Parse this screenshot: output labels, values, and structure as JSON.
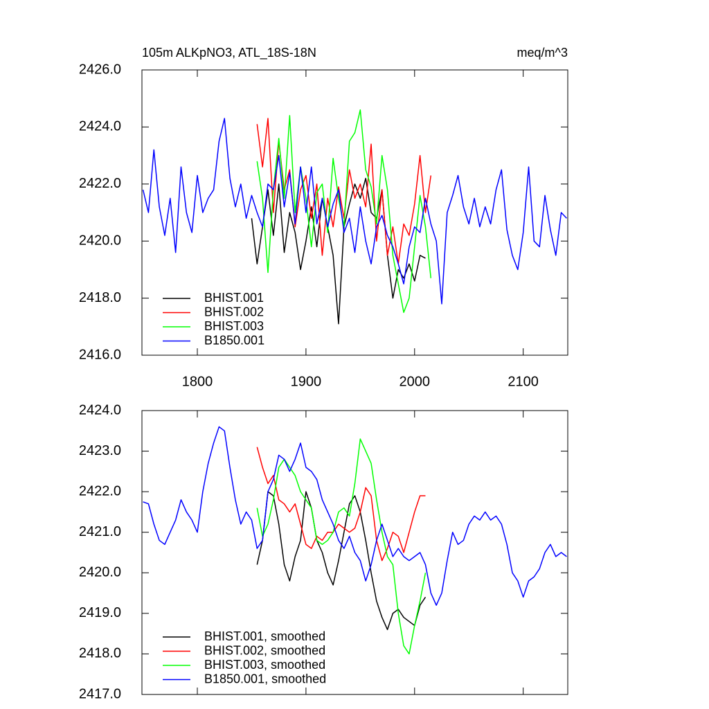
{
  "chart_data": [
    {
      "type": "line",
      "title": "105m ALKpNO3, ATL_18S-18N",
      "units": "meq/m^3",
      "xlim": [
        1749,
        2141
      ],
      "xticks": [
        1800,
        1900,
        2000,
        2100
      ],
      "ylim": [
        2416,
        2426
      ],
      "yticks": [
        {
          "value": 2416,
          "label": "2416.0"
        },
        {
          "value": 2418,
          "label": "2418.0"
        },
        {
          "value": 2420,
          "label": "2420.0"
        },
        {
          "value": 2422,
          "label": "2422.0"
        },
        {
          "value": 2424,
          "label": "2424.0"
        },
        {
          "value": 2426,
          "label": "2426.0"
        }
      ],
      "series": [
        {
          "name": "BHIST.001",
          "color": "#000000",
          "x": [
            1850,
            1855,
            1860,
            1865,
            1870,
            1875,
            1880,
            1885,
            1890,
            1895,
            1900,
            1905,
            1910,
            1915,
            1920,
            1925,
            1930,
            1935,
            1940,
            1945,
            1950,
            1955,
            1960,
            1965,
            1970,
            1975,
            1980,
            1985,
            1990,
            1995,
            2000,
            2005,
            2010
          ],
          "values": [
            2420.8,
            2419.2,
            2420.5,
            2421.8,
            2420.2,
            2422.0,
            2419.6,
            2421.0,
            2420.3,
            2419.0,
            2420.0,
            2421.2,
            2419.8,
            2421.5,
            2420.5,
            2419.5,
            2417.1,
            2420.5,
            2421.3,
            2422.0,
            2421.5,
            2422.2,
            2421.0,
            2420.8,
            2421.8,
            2419.5,
            2418.0,
            2419.0,
            2418.7,
            2419.2,
            2418.6,
            2419.5,
            2419.4
          ]
        },
        {
          "name": "BHIST.002",
          "color": "#ff0000",
          "x": [
            1855,
            1860,
            1865,
            1870,
            1875,
            1880,
            1885,
            1890,
            1895,
            1900,
            1905,
            1910,
            1915,
            1920,
            1925,
            1930,
            1935,
            1940,
            1945,
            1950,
            1955,
            1960,
            1965,
            1970,
            1975,
            1980,
            1985,
            1990,
            1995,
            2000,
            2005,
            2010,
            2015
          ],
          "values": [
            2424.1,
            2422.6,
            2424.3,
            2421.0,
            2423.5,
            2421.8,
            2422.5,
            2420.5,
            2421.8,
            2422.3,
            2420.8,
            2422.0,
            2419.5,
            2421.5,
            2420.5,
            2421.9,
            2420.8,
            2422.5,
            2421.5,
            2422.0,
            2421.2,
            2423.4,
            2420.0,
            2421.8,
            2419.5,
            2420.5,
            2419.2,
            2420.6,
            2420.2,
            2421.3,
            2423.0,
            2421.0,
            2422.3
          ]
        },
        {
          "name": "BHIST.003",
          "color": "#00ff00",
          "x": [
            1855,
            1860,
            1865,
            1870,
            1875,
            1880,
            1885,
            1890,
            1895,
            1900,
            1905,
            1910,
            1915,
            1920,
            1925,
            1930,
            1935,
            1940,
            1945,
            1950,
            1955,
            1960,
            1965,
            1970,
            1975,
            1980,
            1985,
            1990,
            1995,
            2000,
            2005,
            2010,
            2015
          ],
          "values": [
            2422.8,
            2421.5,
            2418.9,
            2421.8,
            2423.6,
            2421.5,
            2424.4,
            2421.0,
            2422.6,
            2421.5,
            2419.8,
            2421.7,
            2422.0,
            2420.3,
            2422.9,
            2421.5,
            2420.5,
            2423.5,
            2423.8,
            2424.6,
            2422.5,
            2421.9,
            2420.6,
            2423.0,
            2421.8,
            2419.5,
            2418.5,
            2417.5,
            2418.0,
            2419.8,
            2421.6,
            2420.5,
            2418.7
          ]
        },
        {
          "name": "B1850.001",
          "color": "#0000ff",
          "x": [
            1750,
            1755,
            1760,
            1765,
            1770,
            1775,
            1780,
            1785,
            1790,
            1795,
            1800,
            1805,
            1810,
            1815,
            1820,
            1825,
            1830,
            1835,
            1840,
            1845,
            1850,
            1855,
            1860,
            1865,
            1870,
            1875,
            1880,
            1885,
            1890,
            1895,
            1900,
            1905,
            1910,
            1915,
            1920,
            1925,
            1930,
            1935,
            1940,
            1945,
            1950,
            1955,
            1960,
            1965,
            1970,
            1975,
            1980,
            1985,
            1990,
            1995,
            2000,
            2005,
            2010,
            2015,
            2020,
            2025,
            2030,
            2035,
            2040,
            2045,
            2050,
            2055,
            2060,
            2065,
            2070,
            2075,
            2080,
            2085,
            2090,
            2095,
            2100,
            2105,
            2110,
            2115,
            2120,
            2125,
            2130,
            2135,
            2140
          ],
          "values": [
            2421.8,
            2421.0,
            2423.2,
            2421.2,
            2420.2,
            2421.5,
            2419.6,
            2422.6,
            2421.0,
            2420.3,
            2422.3,
            2421.0,
            2421.5,
            2421.8,
            2423.5,
            2424.3,
            2422.2,
            2421.2,
            2422.0,
            2420.8,
            2421.6,
            2421.0,
            2420.5,
            2422.0,
            2421.8,
            2423.0,
            2421.2,
            2422.4,
            2420.6,
            2422.6,
            2421.0,
            2422.6,
            2420.6,
            2421.5,
            2420.5,
            2421.3,
            2421.8,
            2420.3,
            2420.8,
            2419.6,
            2421.2,
            2420.0,
            2419.2,
            2420.5,
            2420.9,
            2420.2,
            2419.8,
            2419.2,
            2418.5,
            2419.8,
            2420.5,
            2420.3,
            2421.5,
            2420.6,
            2420.0,
            2417.8,
            2421.0,
            2421.6,
            2422.3,
            2421.2,
            2420.6,
            2421.5,
            2420.5,
            2421.2,
            2420.6,
            2421.8,
            2422.5,
            2420.4,
            2419.5,
            2419.0,
            2420.3,
            2422.6,
            2420.0,
            2419.8,
            2421.6,
            2420.4,
            2419.5,
            2421.0,
            2420.8
          ]
        }
      ]
    },
    {
      "type": "line",
      "xlim": [
        1749,
        2141
      ],
      "xticks": [
        1800,
        1900,
        2000,
        2100
      ],
      "ylim": [
        2417,
        2424
      ],
      "yticks": [
        {
          "value": 2417,
          "label": "2417.0"
        },
        {
          "value": 2418,
          "label": "2418.0"
        },
        {
          "value": 2419,
          "label": "2419.0"
        },
        {
          "value": 2420,
          "label": "2420.0"
        },
        {
          "value": 2421,
          "label": "2421.0"
        },
        {
          "value": 2422,
          "label": "2422.0"
        },
        {
          "value": 2423,
          "label": "2423.0"
        },
        {
          "value": 2424,
          "label": "2424.0"
        }
      ],
      "series": [
        {
          "name": "BHIST.001, smoothed",
          "color": "#000000",
          "x": [
            1855,
            1860,
            1865,
            1870,
            1875,
            1880,
            1885,
            1890,
            1895,
            1900,
            1905,
            1910,
            1915,
            1920,
            1925,
            1930,
            1935,
            1940,
            1945,
            1950,
            1955,
            1960,
            1965,
            1970,
            1975,
            1980,
            1985,
            1990,
            1995,
            2000,
            2005,
            2010
          ],
          "values": [
            2420.2,
            2420.8,
            2422.0,
            2421.9,
            2421.2,
            2420.2,
            2419.8,
            2420.4,
            2420.8,
            2422.0,
            2421.6,
            2420.8,
            2420.5,
            2420.0,
            2419.7,
            2420.3,
            2421.0,
            2421.7,
            2421.9,
            2421.5,
            2420.8,
            2420.0,
            2419.3,
            2418.9,
            2418.6,
            2419.0,
            2419.1,
            2418.9,
            2418.8,
            2418.7,
            2419.2,
            2419.4
          ]
        },
        {
          "name": "BHIST.002, smoothed",
          "color": "#ff0000",
          "x": [
            1855,
            1860,
            1865,
            1870,
            1875,
            1880,
            1885,
            1890,
            1895,
            1900,
            1905,
            1910,
            1915,
            1920,
            1925,
            1930,
            1935,
            1940,
            1945,
            1950,
            1955,
            1960,
            1965,
            1970,
            1975,
            1980,
            1985,
            1990,
            1995,
            2000,
            2005,
            2010
          ],
          "values": [
            2423.1,
            2422.6,
            2422.2,
            2422.4,
            2421.8,
            2421.7,
            2421.5,
            2421.7,
            2421.2,
            2420.7,
            2420.6,
            2420.9,
            2420.8,
            2421.0,
            2421.0,
            2421.2,
            2421.1,
            2421.0,
            2421.1,
            2421.5,
            2422.1,
            2421.9,
            2420.8,
            2420.3,
            2420.6,
            2421.0,
            2420.9,
            2420.5,
            2421.0,
            2421.5,
            2421.9,
            2421.9
          ]
        },
        {
          "name": "BHIST.003, smoothed",
          "color": "#00ff00",
          "x": [
            1855,
            1860,
            1865,
            1870,
            1875,
            1880,
            1885,
            1890,
            1895,
            1900,
            1905,
            1910,
            1915,
            1920,
            1925,
            1930,
            1935,
            1940,
            1945,
            1950,
            1955,
            1960,
            1965,
            1970,
            1975,
            1980,
            1985,
            1990,
            1995,
            2000,
            2005,
            2010
          ],
          "values": [
            2421.6,
            2420.9,
            2421.2,
            2421.8,
            2422.6,
            2422.8,
            2422.6,
            2422.4,
            2422.0,
            2421.8,
            2421.6,
            2420.8,
            2420.7,
            2420.8,
            2421.0,
            2421.5,
            2421.6,
            2421.4,
            2422.2,
            2423.3,
            2423.0,
            2422.7,
            2421.8,
            2421.0,
            2420.4,
            2420.2,
            2419.0,
            2418.2,
            2418.0,
            2418.7,
            2419.3,
            2420.0
          ]
        },
        {
          "name": "B1850.001, smoothed",
          "color": "#0000ff",
          "x": [
            1750,
            1755,
            1760,
            1765,
            1770,
            1775,
            1780,
            1785,
            1790,
            1795,
            1800,
            1805,
            1810,
            1815,
            1820,
            1825,
            1830,
            1835,
            1840,
            1845,
            1850,
            1855,
            1860,
            1865,
            1870,
            1875,
            1880,
            1885,
            1890,
            1895,
            1900,
            1905,
            1910,
            1915,
            1920,
            1925,
            1930,
            1935,
            1940,
            1945,
            1950,
            1955,
            1960,
            1965,
            1970,
            1975,
            1980,
            1985,
            1990,
            1995,
            2000,
            2005,
            2010,
            2015,
            2020,
            2025,
            2030,
            2035,
            2040,
            2045,
            2050,
            2055,
            2060,
            2065,
            2070,
            2075,
            2080,
            2085,
            2090,
            2095,
            2100,
            2105,
            2110,
            2115,
            2120,
            2125,
            2130,
            2135,
            2140
          ],
          "values": [
            2421.75,
            2421.7,
            2421.2,
            2420.8,
            2420.7,
            2421.0,
            2421.3,
            2421.8,
            2421.5,
            2421.3,
            2421.0,
            2422.0,
            2422.7,
            2423.2,
            2423.6,
            2423.5,
            2422.6,
            2421.8,
            2421.2,
            2421.5,
            2421.3,
            2420.6,
            2420.8,
            2422.0,
            2422.3,
            2422.9,
            2422.8,
            2422.5,
            2422.8,
            2423.2,
            2422.6,
            2422.5,
            2422.3,
            2421.8,
            2421.5,
            2421.2,
            2420.8,
            2420.6,
            2420.9,
            2420.5,
            2420.3,
            2419.8,
            2420.2,
            2420.8,
            2421.2,
            2420.8,
            2420.4,
            2420.6,
            2420.4,
            2420.3,
            2420.4,
            2420.5,
            2420.2,
            2419.5,
            2419.2,
            2419.5,
            2420.3,
            2421.0,
            2420.7,
            2420.8,
            2421.2,
            2421.4,
            2421.3,
            2421.5,
            2421.3,
            2421.4,
            2421.2,
            2420.7,
            2420.0,
            2419.8,
            2419.4,
            2419.8,
            2419.9,
            2420.1,
            2420.5,
            2420.7,
            2420.4,
            2420.5,
            2420.4
          ]
        }
      ]
    }
  ]
}
